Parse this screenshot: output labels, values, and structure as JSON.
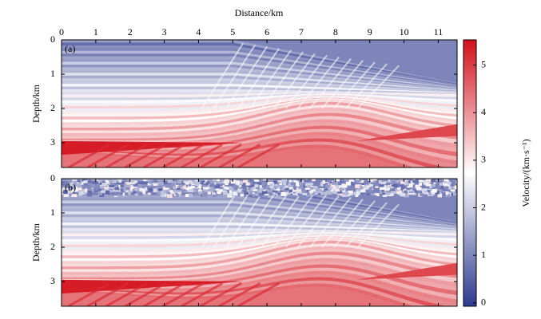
{
  "chart_data": {
    "type": "heatmap",
    "xlabel": "Distance/km",
    "ylabel": "Depth/km",
    "xlim": [
      0,
      11.55
    ],
    "xticks": [
      0,
      1,
      2,
      3,
      4,
      5,
      6,
      7,
      8,
      9,
      10,
      11
    ],
    "ylim": [
      0,
      3.72
    ],
    "yticks": [
      0,
      1,
      2,
      3
    ],
    "panels": [
      {
        "label": "(a)"
      },
      {
        "label": "(b)"
      }
    ],
    "colorbar": {
      "label": "Velocity/(km·s⁻¹)",
      "lim": [
        -0.07,
        5.53
      ],
      "ticks": [
        0,
        1,
        2,
        3,
        4,
        5
      ],
      "colors": [
        "#2e3a8f",
        "#ffffff",
        "#d4111b"
      ]
    }
  }
}
